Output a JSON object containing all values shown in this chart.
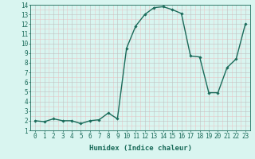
{
  "x": [
    0,
    1,
    2,
    3,
    4,
    5,
    6,
    7,
    8,
    9,
    10,
    11,
    12,
    13,
    14,
    15,
    16,
    17,
    18,
    19,
    20,
    21,
    22,
    23
  ],
  "y": [
    2.0,
    1.9,
    2.2,
    2.0,
    2.0,
    1.7,
    2.0,
    2.1,
    2.8,
    2.2,
    9.5,
    11.8,
    13.0,
    13.7,
    13.8,
    13.5,
    13.1,
    8.7,
    8.6,
    4.9,
    4.9,
    7.5,
    8.4,
    12.0
  ],
  "line_color": "#1a6b5a",
  "marker": "D",
  "markersize": 1.8,
  "linewidth": 1.0,
  "bg_color": "#d9f5f0",
  "grid_color_major": "#c0c0c0",
  "grid_color_minor": "#e8c8c8",
  "xlabel": "Humidex (Indice chaleur)",
  "xlim": [
    -0.5,
    23.5
  ],
  "ylim": [
    1,
    14
  ],
  "yticks": [
    1,
    2,
    3,
    4,
    5,
    6,
    7,
    8,
    9,
    10,
    11,
    12,
    13,
    14
  ],
  "xticks": [
    0,
    1,
    2,
    3,
    4,
    5,
    6,
    7,
    8,
    9,
    10,
    11,
    12,
    13,
    14,
    15,
    16,
    17,
    18,
    19,
    20,
    21,
    22,
    23
  ],
  "xlabel_fontsize": 6.5,
  "tick_fontsize": 5.5
}
